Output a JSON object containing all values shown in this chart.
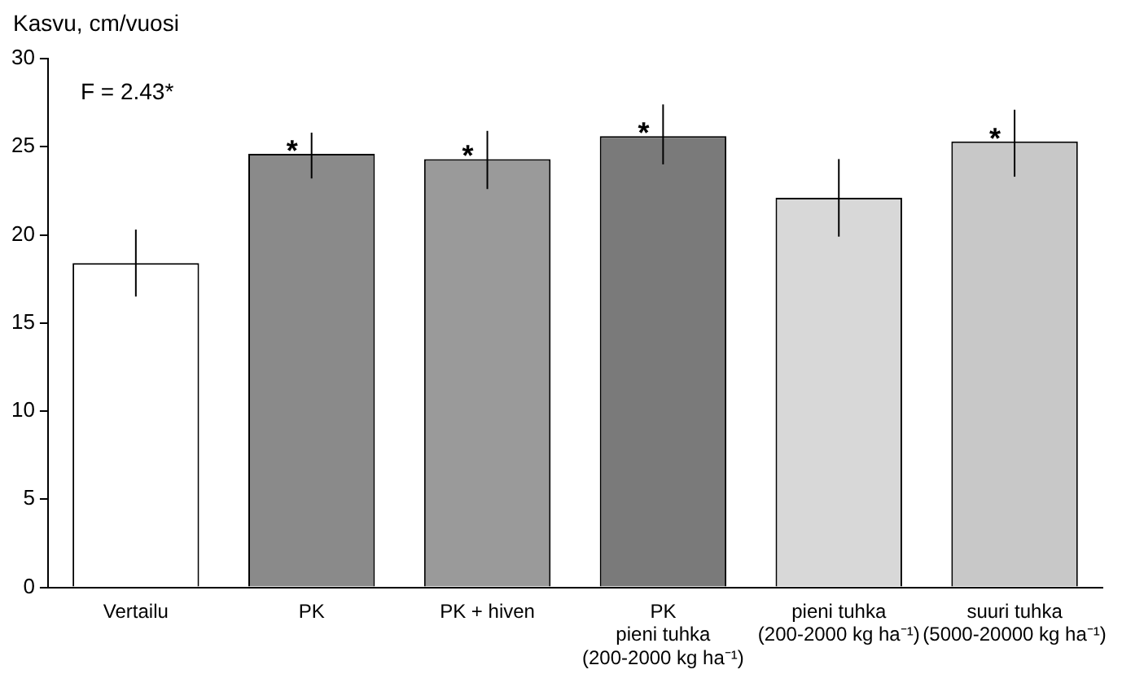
{
  "chart_data": {
    "type": "bar",
    "ylabel": "Kasvu, cm/vuosi",
    "categories": [
      "Vertailu",
      "PK",
      "PK + hiven",
      "PK\npieni tuhka\n(200-2000 kg ha⁻¹)",
      "pieni tuhka\n(200-2000 kg ha⁻¹)",
      "suuri tuhka\n(5000-20000 kg ha⁻¹)"
    ],
    "values": [
      18.4,
      24.6,
      24.3,
      25.6,
      22.1,
      25.3
    ],
    "errors": [
      [
        16.5,
        20.3
      ],
      [
        23.2,
        25.8
      ],
      [
        22.6,
        25.9
      ],
      [
        24.0,
        27.4
      ],
      [
        19.9,
        24.3
      ],
      [
        23.3,
        27.1
      ]
    ],
    "colors": [
      "#ffffff",
      "#8a8a8a",
      "#9a9a9a",
      "#7a7a7a",
      "#d8d8d8",
      "#c8c8c8"
    ],
    "ylim": [
      0,
      30
    ],
    "yticks": [
      0,
      5,
      10,
      15,
      20,
      25,
      30
    ],
    "grid": false,
    "legend": false,
    "annotations": [
      "F = 2.43*",
      {
        "text": "*",
        "x": "PK",
        "y": 24.6
      },
      {
        "text": "*",
        "x": "PK + hiven",
        "y": 24.3
      },
      {
        "text": "*",
        "x": "PK\npieni tuhka\n(200-2000 kg ha⁻¹)",
        "y": 25.6
      },
      {
        "text": "*",
        "x": "suuri tuhka\n(5000-20000 kg ha⁻¹)",
        "y": 25.3
      }
    ]
  }
}
